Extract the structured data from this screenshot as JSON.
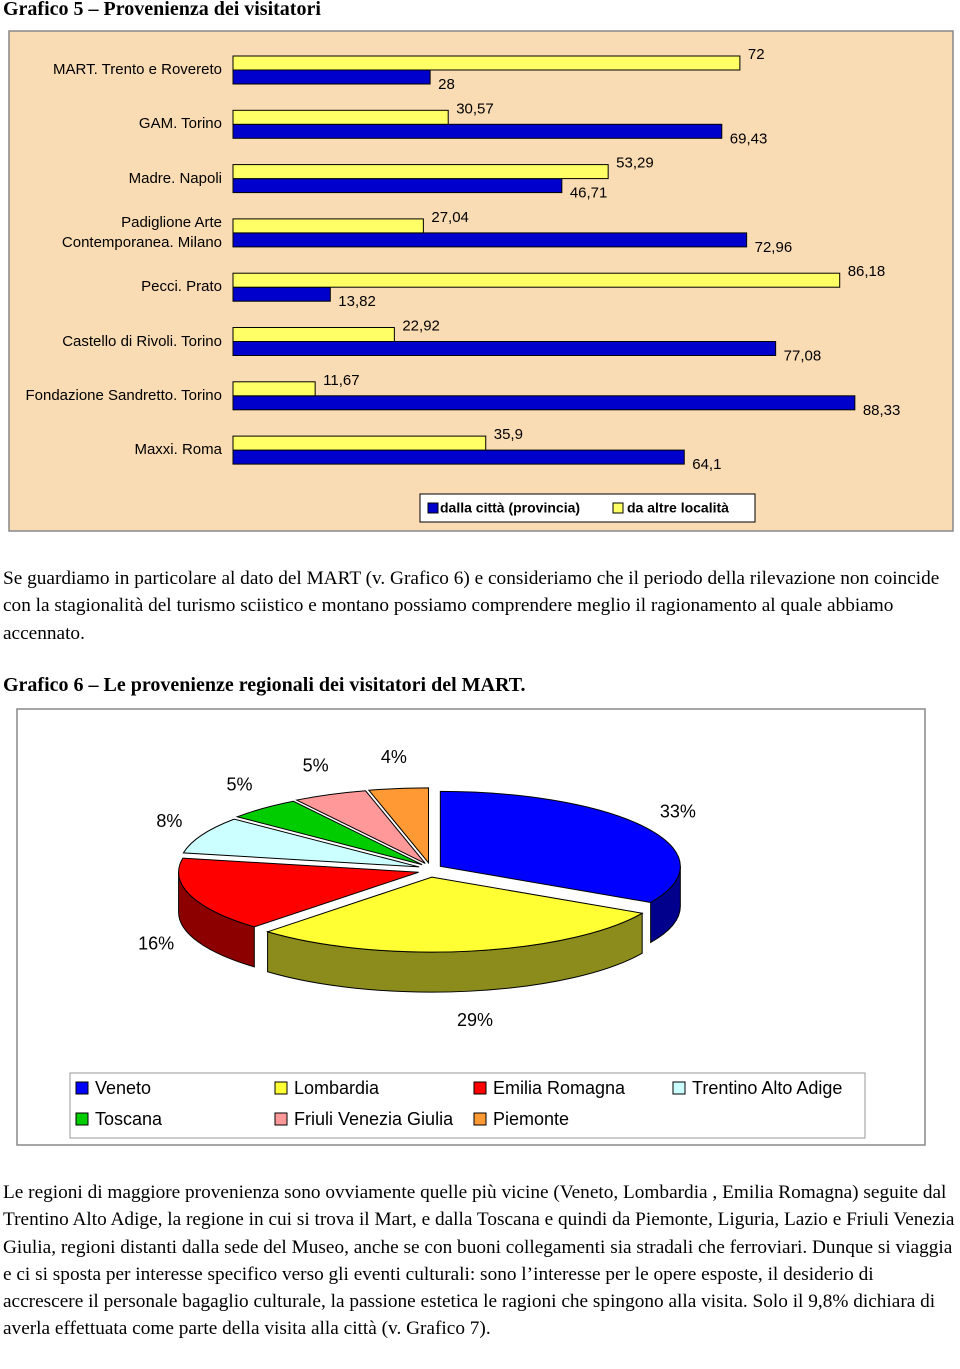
{
  "headings": [
    "Grafico 5 – Provenienza dei visitatori",
    "Grafico 6 – Le provenienze regionali dei visitatori del MART."
  ],
  "paragraphs": [
    "Se guardiamo in particolare al dato del MART (v. Grafico 6) e consideriamo che il periodo della rilevazione non coincide con la stagionalità del turismo sciistico e montano possiamo comprendere meglio il ragionamento al quale abbiamo accennato.",
    "Le regioni di maggiore provenienza sono ovviamente quelle più vicine (Veneto, Lombardia , Emilia Romagna) seguite dal Trentino Alto Adige, la regione in cui si trova il Mart, e dalla Toscana e quindi da Piemonte, Liguria, Lazio e Friuli Venezia Giulia, regioni distanti dalla sede del Museo, anche se con buoni collegamenti sia stradali che ferroviari. Dunque si viaggia e ci si sposta per interesse specifico verso gli eventi culturali: sono l’interesse per le opere esposte, il desiderio di accrescere il personale bagaglio culturale, la passione estetica le ragioni che spingono alla visita. Solo il 9,8% dichiara di averla effettuata come parte della visita alla città (v. Grafico 7)."
  ],
  "chart_data": [
    {
      "type": "bar",
      "orientation": "horizontal",
      "categories": [
        "MART. Trento e  Rovereto",
        "GAM. Torino",
        "Madre. Napoli",
        "Padiglione Arte Contemporanea. Milano",
        "Pecci. Prato",
        "Castello di Rivoli. Torino",
        "Fondazione Sandretto. Torino",
        "Maxxi. Roma"
      ],
      "series": [
        {
          "name": "dalla città (provincia)",
          "color": "#0000cc",
          "values": [
            28,
            69.43,
            46.71,
            72.96,
            13.82,
            77.08,
            88.33,
            64.1
          ],
          "value_labels": [
            "28",
            "69,43",
            "46,71",
            "72,96",
            "13,82",
            "77,08",
            "88,33",
            "64,1"
          ]
        },
        {
          "name": "da altre località",
          "color": "#ffff66",
          "values": [
            72,
            30.57,
            53.29,
            27.04,
            86.18,
            22.92,
            11.67,
            35.9
          ],
          "value_labels": [
            "72",
            "30,57",
            "53,29",
            "27,04",
            "86,18",
            "22,92",
            "11,67",
            "35,9"
          ]
        }
      ],
      "xlim": [
        0,
        100
      ],
      "legend": "bottom",
      "background": "#fadcb4"
    },
    {
      "type": "pie",
      "categories": [
        "Veneto",
        "Lombardia",
        "Emilia Romagna",
        "Trentino Alto Adige",
        "Toscana",
        "Friuli Venezia Giulia",
        "Piemonte"
      ],
      "values": [
        33,
        29,
        16,
        8,
        5,
        5,
        4
      ],
      "value_labels": [
        "33%",
        "29%",
        "16%",
        "8%",
        "5%",
        "5%",
        "4%"
      ],
      "colors": [
        "#0000ff",
        "#ffff33",
        "#ff0000",
        "#ccffff",
        "#00cc00",
        "#ff9999",
        "#ff9933"
      ],
      "legend": "bottom"
    }
  ]
}
